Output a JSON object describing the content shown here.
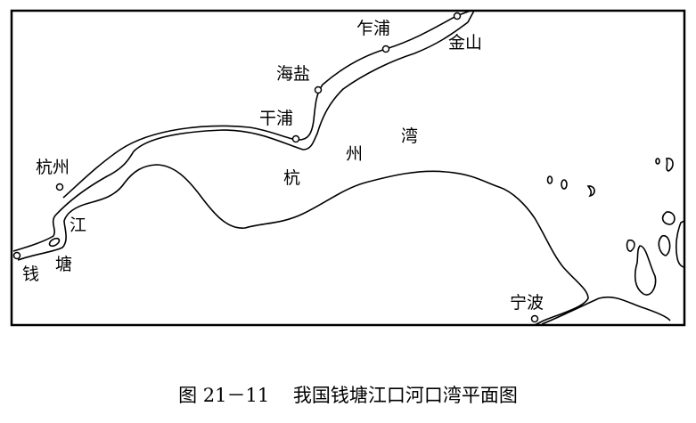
{
  "map": {
    "places": {
      "zhapu": "乍浦",
      "jinshan": "金山",
      "haiyan": "海盐",
      "ganpu": "干浦",
      "hangzhou": "杭州",
      "ningbo": "宁波"
    },
    "water_labels": {
      "bay": [
        "杭",
        "州",
        "湾"
      ],
      "river": [
        "江",
        "钱",
        "塘"
      ]
    }
  },
  "caption": {
    "figure_number": "图 21－11",
    "title": "我国钱塘江口河口湾平面图"
  }
}
